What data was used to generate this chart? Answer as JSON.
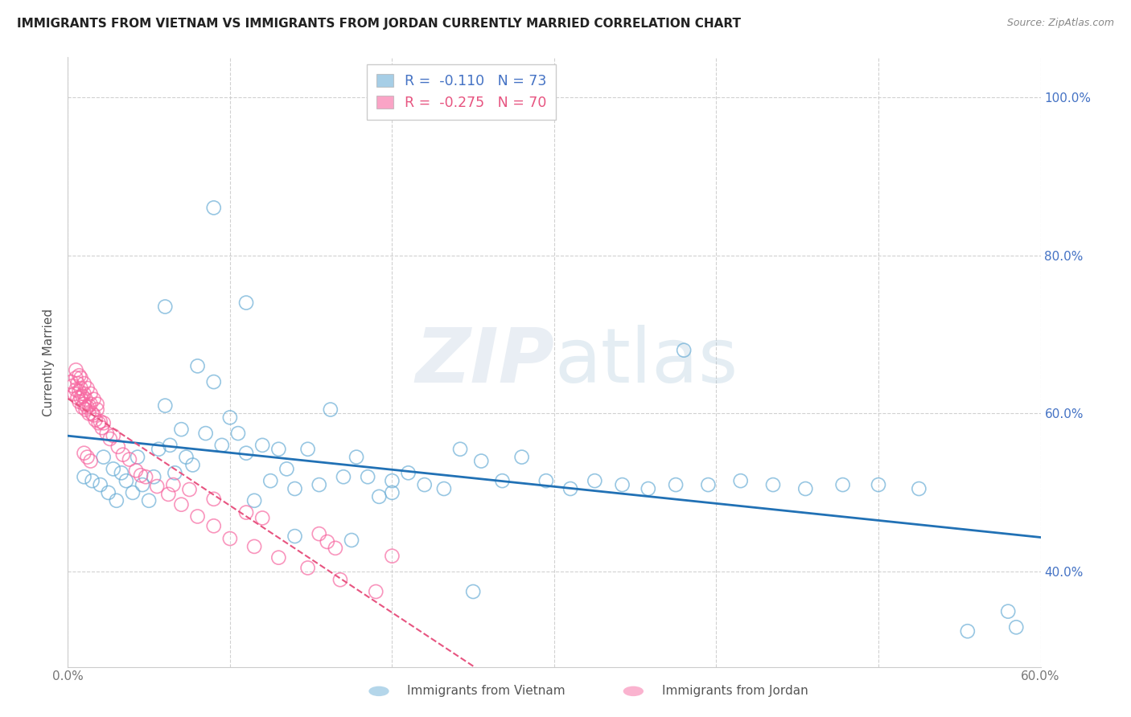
{
  "title": "IMMIGRANTS FROM VIETNAM VS IMMIGRANTS FROM JORDAN CURRENTLY MARRIED CORRELATION CHART",
  "source": "Source: ZipAtlas.com",
  "ylabel": "Currently Married",
  "xlim": [
    0.0,
    0.6
  ],
  "ylim": [
    0.28,
    1.05
  ],
  "xtick_vals": [
    0.0,
    0.1,
    0.2,
    0.3,
    0.4,
    0.5,
    0.6
  ],
  "xticklabels": [
    "0.0%",
    "",
    "",
    "",
    "",
    "",
    "60.0%"
  ],
  "ytick_right_vals": [
    0.4,
    0.6,
    0.8,
    1.0
  ],
  "ytick_right_labels": [
    "40.0%",
    "60.0%",
    "80.0%",
    "100.0%"
  ],
  "vietnam_color": "#6baed6",
  "jordan_color": "#f768a1",
  "background_color": "#ffffff",
  "grid_color": "#cccccc",
  "trendline_vietnam_color": "#2171b5",
  "trendline_jordan_color": "#e75480",
  "vietnam_x": [
    0.01,
    0.015,
    0.02,
    0.022,
    0.025,
    0.028,
    0.03,
    0.033,
    0.036,
    0.04,
    0.043,
    0.046,
    0.05,
    0.053,
    0.056,
    0.06,
    0.063,
    0.066,
    0.07,
    0.073,
    0.077,
    0.08,
    0.085,
    0.09,
    0.095,
    0.1,
    0.105,
    0.11,
    0.115,
    0.12,
    0.125,
    0.13,
    0.135,
    0.14,
    0.148,
    0.155,
    0.162,
    0.17,
    0.178,
    0.185,
    0.192,
    0.2,
    0.21,
    0.22,
    0.232,
    0.242,
    0.255,
    0.268,
    0.28,
    0.295,
    0.31,
    0.325,
    0.342,
    0.358,
    0.375,
    0.395,
    0.415,
    0.435,
    0.455,
    0.478,
    0.5,
    0.525,
    0.555,
    0.58,
    0.06,
    0.09,
    0.11,
    0.14,
    0.175,
    0.2,
    0.25,
    0.38,
    0.585
  ],
  "vietnam_y": [
    0.52,
    0.515,
    0.51,
    0.545,
    0.5,
    0.53,
    0.49,
    0.525,
    0.515,
    0.5,
    0.545,
    0.51,
    0.49,
    0.52,
    0.555,
    0.61,
    0.56,
    0.525,
    0.58,
    0.545,
    0.535,
    0.66,
    0.575,
    0.64,
    0.56,
    0.595,
    0.575,
    0.55,
    0.49,
    0.56,
    0.515,
    0.555,
    0.53,
    0.505,
    0.555,
    0.51,
    0.605,
    0.52,
    0.545,
    0.52,
    0.495,
    0.515,
    0.525,
    0.51,
    0.505,
    0.555,
    0.54,
    0.515,
    0.545,
    0.515,
    0.505,
    0.515,
    0.51,
    0.505,
    0.51,
    0.51,
    0.515,
    0.51,
    0.505,
    0.51,
    0.51,
    0.505,
    0.325,
    0.35,
    0.735,
    0.86,
    0.74,
    0.445,
    0.44,
    0.5,
    0.375,
    0.68,
    0.33
  ],
  "jordan_x": [
    0.002,
    0.003,
    0.004,
    0.005,
    0.005,
    0.006,
    0.006,
    0.007,
    0.007,
    0.008,
    0.008,
    0.009,
    0.009,
    0.01,
    0.01,
    0.011,
    0.011,
    0.012,
    0.013,
    0.013,
    0.014,
    0.015,
    0.016,
    0.017,
    0.018,
    0.019,
    0.02,
    0.021,
    0.022,
    0.024,
    0.026,
    0.028,
    0.031,
    0.034,
    0.038,
    0.042,
    0.048,
    0.055,
    0.062,
    0.07,
    0.08,
    0.09,
    0.1,
    0.115,
    0.13,
    0.148,
    0.168,
    0.19,
    0.065,
    0.09,
    0.12,
    0.155,
    0.045,
    0.075,
    0.16,
    0.2,
    0.11,
    0.165,
    0.005,
    0.007,
    0.008,
    0.01,
    0.012,
    0.014,
    0.016,
    0.018,
    0.01,
    0.012,
    0.014
  ],
  "jordan_y": [
    0.64,
    0.635,
    0.625,
    0.645,
    0.63,
    0.62,
    0.638,
    0.615,
    0.628,
    0.62,
    0.632,
    0.608,
    0.622,
    0.612,
    0.625,
    0.605,
    0.618,
    0.608,
    0.61,
    0.6,
    0.612,
    0.6,
    0.598,
    0.592,
    0.605,
    0.588,
    0.59,
    0.582,
    0.588,
    0.575,
    0.568,
    0.572,
    0.558,
    0.548,
    0.542,
    0.528,
    0.52,
    0.508,
    0.498,
    0.485,
    0.47,
    0.458,
    0.442,
    0.432,
    0.418,
    0.405,
    0.39,
    0.375,
    0.51,
    0.492,
    0.468,
    0.448,
    0.522,
    0.504,
    0.438,
    0.42,
    0.475,
    0.43,
    0.655,
    0.648,
    0.645,
    0.638,
    0.632,
    0.625,
    0.618,
    0.612,
    0.55,
    0.545,
    0.54
  ]
}
